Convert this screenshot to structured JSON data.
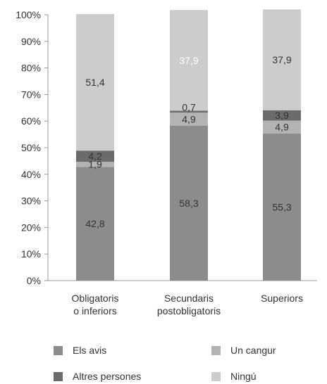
{
  "chart_data": {
    "type": "bar",
    "stacked": true,
    "categories": [
      [
        "Obligatoris",
        "o inferiors"
      ],
      [
        "Secundaris",
        "postobligatoris"
      ],
      [
        "Superiors"
      ]
    ],
    "y_ticks": [
      "0%",
      "10%",
      "20%",
      "30%",
      "40%",
      "50%",
      "60%",
      "70%",
      "80%",
      "90%",
      "100%"
    ],
    "ylim": [
      0,
      100
    ],
    "grid": false,
    "legend_position": "bottom",
    "series": [
      {
        "name": "Els avis",
        "color": "#8c8c8c",
        "values": [
          42.8,
          58.3,
          55.3
        ],
        "labels": [
          "42,8",
          "58,3",
          "55,3"
        ]
      },
      {
        "name": "Un cangur",
        "color": "#b3b3b3",
        "values": [
          1.9,
          4.9,
          4.9
        ],
        "labels": [
          "1,9",
          "4,9",
          "4,9"
        ]
      },
      {
        "name": "Altres persones",
        "color": "#6b6b6b",
        "values": [
          4.2,
          0.7,
          3.9
        ],
        "labels": [
          "4,2",
          "0,7",
          "3,9"
        ]
      },
      {
        "name": "Ningú",
        "color": "#cccccc",
        "values": [
          51.4,
          37.9,
          37.9
        ],
        "labels": [
          "51,4",
          "37,9",
          "37,9"
        ]
      }
    ]
  }
}
